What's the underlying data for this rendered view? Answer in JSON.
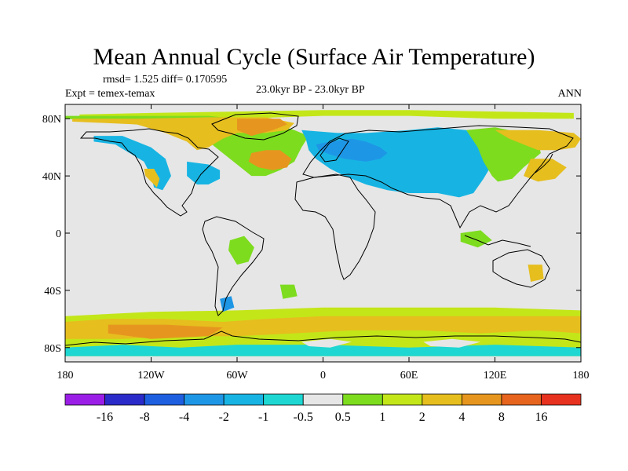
{
  "title": "Mean Annual Cycle (Surface Air Temperature)",
  "stats": "rmsd= 1.525 diff= 0.170595",
  "experiment": "Expt = temex-temax",
  "center_label": "23.0kyr BP - 23.0kyr BP",
  "season": "ANN",
  "map": {
    "projection": "cylindrical-equidistant",
    "lon_range": [
      -180,
      180
    ],
    "lat_range": [
      -90,
      90
    ],
    "lat_ticks": [
      {
        "label": "80N",
        "lat": 80
      },
      {
        "label": "40N",
        "lat": 40
      },
      {
        "label": "0",
        "lat": 0
      },
      {
        "label": "40S",
        "lat": -40
      },
      {
        "label": "80S",
        "lat": -80
      }
    ],
    "lon_ticks": [
      {
        "label": "180",
        "lon": -180
      },
      {
        "label": "120W",
        "lon": -120
      },
      {
        "label": "60W",
        "lon": -60
      },
      {
        "label": "0",
        "lon": 0
      },
      {
        "label": "60E",
        "lon": 60
      },
      {
        "label": "120E",
        "lon": 120
      },
      {
        "label": "180",
        "lon": 180
      }
    ],
    "background_color": "#e6e6e6"
  },
  "colorbar": {
    "labels": [
      "-16",
      "-8",
      "-4",
      "-2",
      "-1",
      "-0.5",
      "0.5",
      "1",
      "2",
      "4",
      "8",
      "16"
    ],
    "colors": [
      "#9a1ee6",
      "#2b2bc9",
      "#1e5fe0",
      "#1e96e6",
      "#17b4e3",
      "#1ed7d2",
      "#e6e6e6",
      "#7ddc1e",
      "#c3e619",
      "#e6be1e",
      "#e6961e",
      "#e6641e",
      "#e6321e"
    ]
  },
  "regions": [
    {
      "color": "#c3e619",
      "pts": [
        [
          -170,
          83
        ],
        [
          -120,
          84
        ],
        [
          -60,
          85
        ],
        [
          0,
          86
        ],
        [
          60,
          86
        ],
        [
          120,
          85
        ],
        [
          175,
          84
        ],
        [
          175,
          80
        ],
        [
          120,
          80
        ],
        [
          60,
          82
        ],
        [
          0,
          82
        ],
        [
          -60,
          80
        ],
        [
          -120,
          80
        ],
        [
          -170,
          80
        ]
      ]
    },
    {
      "color": "#7ddc1e",
      "pts": [
        [
          -180,
          80
        ],
        [
          -150,
          78
        ],
        [
          -110,
          74
        ],
        [
          -85,
          68
        ],
        [
          -70,
          56
        ],
        [
          -60,
          48
        ],
        [
          -50,
          40
        ],
        [
          -40,
          40
        ],
        [
          -30,
          44
        ],
        [
          -20,
          50
        ],
        [
          -15,
          60
        ],
        [
          -10,
          68
        ],
        [
          -20,
          72
        ],
        [
          -40,
          78
        ],
        [
          -80,
          82
        ],
        [
          -140,
          82
        ],
        [
          -180,
          82
        ]
      ]
    },
    {
      "color": "#e6be1e",
      "pts": [
        [
          -175,
          78
        ],
        [
          -130,
          76
        ],
        [
          -110,
          70
        ],
        [
          -95,
          64
        ],
        [
          -88,
          58
        ],
        [
          -80,
          60
        ],
        [
          -70,
          66
        ],
        [
          -60,
          70
        ],
        [
          -40,
          70
        ],
        [
          -25,
          72
        ],
        [
          -20,
          77
        ],
        [
          -40,
          81
        ],
        [
          -80,
          81
        ],
        [
          -130,
          80
        ],
        [
          -175,
          80
        ]
      ]
    },
    {
      "color": "#e6961e",
      "pts": [
        [
          -60,
          80
        ],
        [
          -30,
          80
        ],
        [
          -25,
          76
        ],
        [
          -35,
          72
        ],
        [
          -50,
          68
        ],
        [
          -60,
          72
        ]
      ]
    },
    {
      "color": "#e6961e",
      "pts": [
        [
          -50,
          56
        ],
        [
          -40,
          58
        ],
        [
          -30,
          58
        ],
        [
          -22,
          52
        ],
        [
          -25,
          46
        ],
        [
          -35,
          44
        ],
        [
          -45,
          46
        ],
        [
          -52,
          50
        ]
      ]
    },
    {
      "color": "#17b4e3",
      "pts": [
        [
          -160,
          64
        ],
        [
          -145,
          62
        ],
        [
          -135,
          56
        ],
        [
          -125,
          50
        ],
        [
          -120,
          40
        ],
        [
          -118,
          32
        ],
        [
          -112,
          30
        ],
        [
          -106,
          40
        ],
        [
          -110,
          52
        ],
        [
          -120,
          60
        ],
        [
          -140,
          68
        ],
        [
          -160,
          68
        ]
      ]
    },
    {
      "color": "#17b4e3",
      "pts": [
        [
          -95,
          50
        ],
        [
          -80,
          48
        ],
        [
          -72,
          44
        ],
        [
          -72,
          38
        ],
        [
          -80,
          34
        ],
        [
          -88,
          34
        ],
        [
          -95,
          40
        ]
      ]
    },
    {
      "color": "#e6be1e",
      "pts": [
        [
          -125,
          45
        ],
        [
          -118,
          45
        ],
        [
          -114,
          38
        ],
        [
          -116,
          32
        ],
        [
          -120,
          36
        ],
        [
          -124,
          40
        ]
      ]
    },
    {
      "color": "#17b4e3",
      "pts": [
        [
          -15,
          72
        ],
        [
          10,
          70
        ],
        [
          30,
          70
        ],
        [
          60,
          72
        ],
        [
          80,
          74
        ],
        [
          100,
          72
        ],
        [
          110,
          66
        ],
        [
          120,
          60
        ],
        [
          118,
          48
        ],
        [
          112,
          38
        ],
        [
          105,
          28
        ],
        [
          95,
          25
        ],
        [
          80,
          28
        ],
        [
          60,
          28
        ],
        [
          45,
          30
        ],
        [
          30,
          34
        ],
        [
          15,
          40
        ],
        [
          5,
          45
        ],
        [
          -5,
          52
        ],
        [
          -10,
          58
        ],
        [
          -12,
          66
        ]
      ]
    },
    {
      "color": "#1e96e6",
      "pts": [
        [
          -5,
          62
        ],
        [
          5,
          64
        ],
        [
          20,
          66
        ],
        [
          30,
          64
        ],
        [
          40,
          60
        ],
        [
          45,
          56
        ],
        [
          40,
          52
        ],
        [
          30,
          50
        ],
        [
          15,
          52
        ],
        [
          5,
          55
        ],
        [
          -3,
          58
        ]
      ]
    },
    {
      "color": "#7ddc1e",
      "pts": [
        [
          100,
          72
        ],
        [
          120,
          74
        ],
        [
          140,
          70
        ],
        [
          150,
          64
        ],
        [
          152,
          56
        ],
        [
          140,
          46
        ],
        [
          132,
          38
        ],
        [
          122,
          36
        ],
        [
          118,
          40
        ],
        [
          112,
          50
        ],
        [
          108,
          60
        ]
      ]
    },
    {
      "color": "#e6be1e",
      "pts": [
        [
          120,
          72
        ],
        [
          150,
          72
        ],
        [
          175,
          70
        ],
        [
          180,
          66
        ],
        [
          176,
          60
        ],
        [
          164,
          58
        ],
        [
          150,
          58
        ],
        [
          140,
          62
        ],
        [
          130,
          66
        ]
      ]
    },
    {
      "color": "#e6be1e",
      "pts": [
        [
          145,
          52
        ],
        [
          160,
          52
        ],
        [
          170,
          46
        ],
        [
          162,
          38
        ],
        [
          150,
          36
        ],
        [
          140,
          40
        ]
      ]
    },
    {
      "color": "#c3e619",
      "pts": [
        [
          -180,
          -58
        ],
        [
          -120,
          -55
        ],
        [
          -60,
          -54
        ],
        [
          0,
          -52
        ],
        [
          60,
          -52
        ],
        [
          120,
          -52
        ],
        [
          180,
          -54
        ],
        [
          180,
          -86
        ],
        [
          -180,
          -86
        ]
      ]
    },
    {
      "color": "#e6be1e",
      "pts": [
        [
          -180,
          -62
        ],
        [
          -150,
          -60
        ],
        [
          -110,
          -60
        ],
        [
          -70,
          -62
        ],
        [
          -40,
          -60
        ],
        [
          0,
          -58
        ],
        [
          40,
          -58
        ],
        [
          80,
          -58
        ],
        [
          120,
          -58
        ],
        [
          160,
          -58
        ],
        [
          180,
          -58
        ],
        [
          180,
          -70
        ],
        [
          150,
          -68
        ],
        [
          110,
          -70
        ],
        [
          70,
          -68
        ],
        [
          20,
          -68
        ],
        [
          -20,
          -70
        ],
        [
          -60,
          -72
        ],
        [
          -100,
          -72
        ],
        [
          -140,
          -74
        ],
        [
          -180,
          -74
        ]
      ]
    },
    {
      "color": "#e6961e",
      "pts": [
        [
          -150,
          -64
        ],
        [
          -110,
          -64
        ],
        [
          -70,
          -66
        ],
        [
          -80,
          -72
        ],
        [
          -120,
          -74
        ],
        [
          -150,
          -70
        ]
      ]
    },
    {
      "color": "#1ed7d2",
      "pts": [
        [
          -180,
          -80
        ],
        [
          -140,
          -78
        ],
        [
          -100,
          -80
        ],
        [
          -60,
          -78
        ],
        [
          0,
          -78
        ],
        [
          60,
          -80
        ],
        [
          120,
          -78
        ],
        [
          180,
          -80
        ],
        [
          180,
          -86
        ],
        [
          -180,
          -86
        ]
      ]
    },
    {
      "color": "#e6e6e6",
      "pts": [
        [
          -15,
          -76
        ],
        [
          5,
          -74
        ],
        [
          20,
          -76
        ],
        [
          5,
          -80
        ],
        [
          -10,
          -79
        ]
      ]
    },
    {
      "color": "#e6e6e6",
      "pts": [
        [
          70,
          -76
        ],
        [
          90,
          -74
        ],
        [
          110,
          -76
        ],
        [
          95,
          -80
        ],
        [
          75,
          -79
        ]
      ]
    },
    {
      "color": "#7ddc1e",
      "pts": [
        [
          -65,
          -5
        ],
        [
          -55,
          -2
        ],
        [
          -48,
          -10
        ],
        [
          -52,
          -20
        ],
        [
          -60,
          -22
        ],
        [
          -66,
          -12
        ]
      ]
    },
    {
      "color": "#7ddc1e",
      "pts": [
        [
          -30,
          -36
        ],
        [
          -20,
          -36
        ],
        [
          -18,
          -44
        ],
        [
          -28,
          -46
        ]
      ]
    },
    {
      "color": "#1e96e6",
      "pts": [
        [
          -72,
          -46
        ],
        [
          -64,
          -44
        ],
        [
          -62,
          -52
        ],
        [
          -70,
          -55
        ]
      ]
    },
    {
      "color": "#7ddc1e",
      "pts": [
        [
          96,
          0
        ],
        [
          110,
          2
        ],
        [
          118,
          -5
        ],
        [
          108,
          -10
        ],
        [
          96,
          -6
        ]
      ]
    },
    {
      "color": "#e6be1e",
      "pts": [
        [
          143,
          -22
        ],
        [
          153,
          -22
        ],
        [
          154,
          -32
        ],
        [
          145,
          -34
        ]
      ]
    }
  ]
}
